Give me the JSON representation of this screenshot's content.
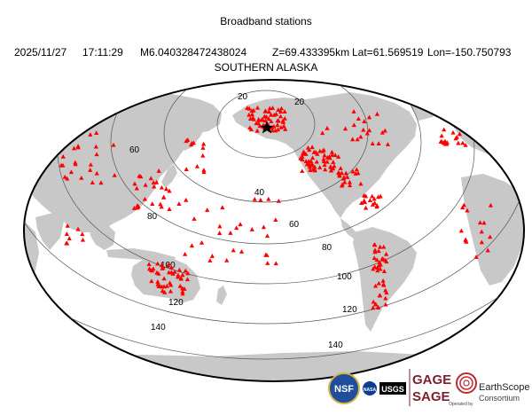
{
  "header": {
    "title": "Broadband stations",
    "date": "2025/11/27",
    "time": "17:11:29",
    "magnitude": "M6.040328472438024",
    "depth": "Z=69.433395km",
    "lat": "Lat=61.569519",
    "lon": "Lon=-150.750793",
    "region": "SOUTHERN ALASKA"
  },
  "map": {
    "projection": "Robinson (Pacific-centered)",
    "land_color": "#c8c8c8",
    "ocean_color": "#ffffff",
    "station_color": "#ff0000",
    "epicenter_marker": "star",
    "contour_labels": [
      "20",
      "20",
      "40",
      "60",
      "60",
      "80",
      "80",
      "100",
      "100",
      "120",
      "120",
      "140",
      "140"
    ]
  },
  "logos": {
    "nsf": "NSF",
    "nasa": "NASA",
    "usgs": "USGS",
    "gage": "GAGE",
    "sage": "SAGE",
    "earthscope": "EarthScope",
    "consortium": "Consortium",
    "operated_by": "Operated by"
  }
}
